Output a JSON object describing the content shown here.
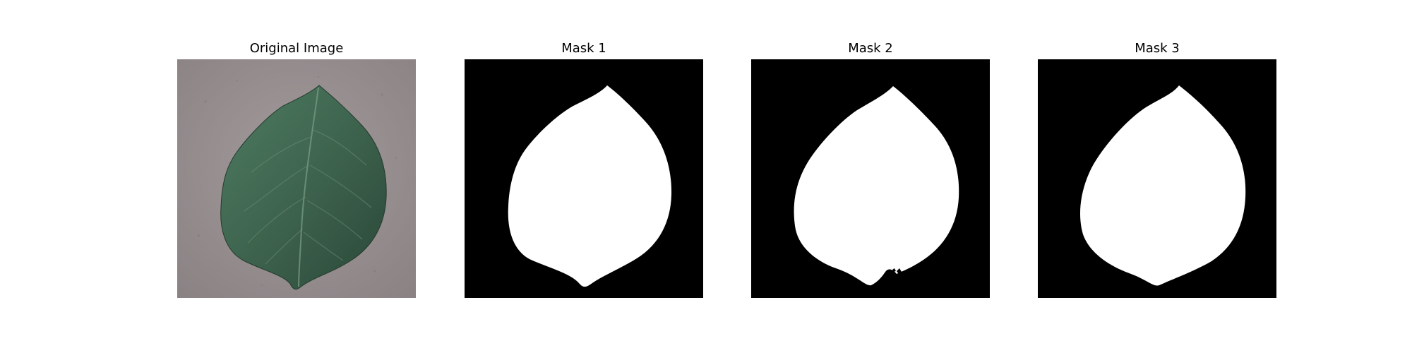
{
  "panels": [
    {
      "title": "Original Image",
      "kind": "photo"
    },
    {
      "title": "Mask 1",
      "kind": "mask"
    },
    {
      "title": "Mask 2",
      "kind": "mask"
    },
    {
      "title": "Mask 3",
      "kind": "mask"
    }
  ],
  "colors": {
    "background": "#ffffff",
    "mask_background": "#000000",
    "mask_foreground": "#ffffff",
    "photo_background": "#938a8c",
    "leaf_dark": "#2f4d3c",
    "leaf_mid": "#3f6650",
    "leaf_light": "#5f8a72"
  }
}
